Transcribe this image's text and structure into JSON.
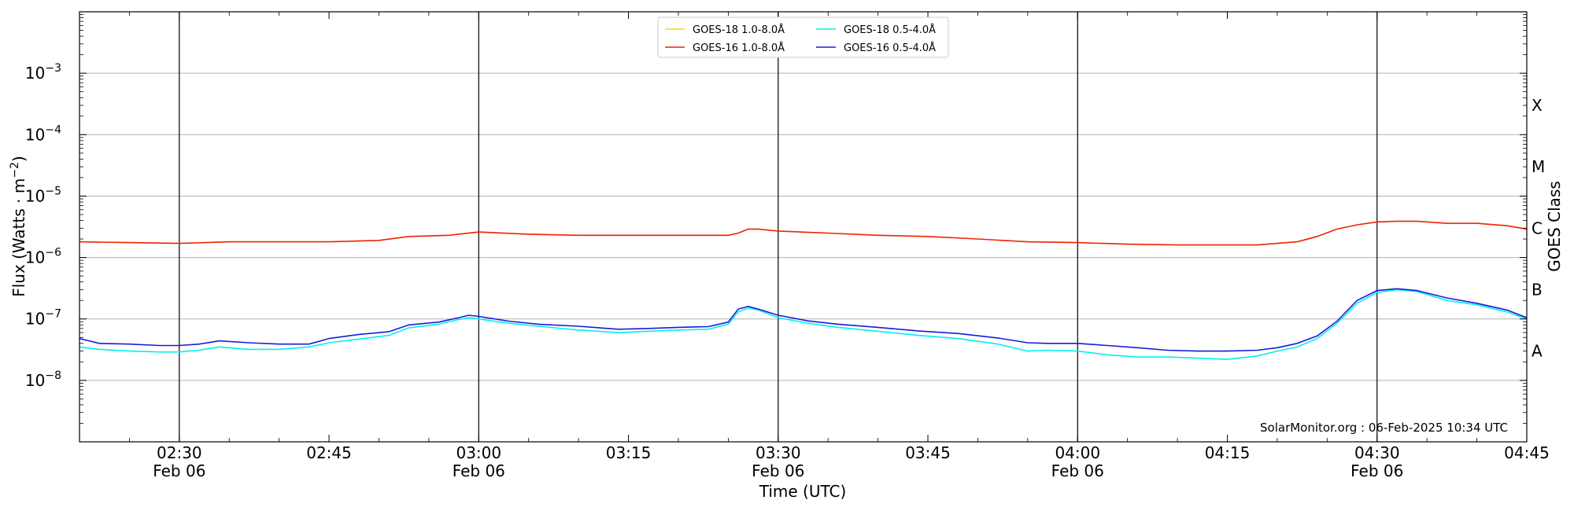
{
  "chart_data": {
    "type": "line",
    "ylabel": "Flux (Watts · m",
    "ylabel_sup": "−2",
    "ylabel_close": ")",
    "xlabel": "Time (UTC)",
    "right_label": "GOES Class",
    "credit": "SolarMonitor.org : 06-Feb-2025 10:34 UTC",
    "y_scale": "log",
    "ylim": [
      1e-09,
      0.01
    ],
    "xlim": [
      "02:20",
      "04:45"
    ],
    "grid": "horizontal at major y ticks",
    "legend_location": "top-center",
    "yticks": [
      {
        "value": 1e-08,
        "base": "10",
        "exp": "−8"
      },
      {
        "value": 1e-07,
        "base": "10",
        "exp": "−7"
      },
      {
        "value": 1e-06,
        "base": "10",
        "exp": "−6"
      },
      {
        "value": 1e-05,
        "base": "10",
        "exp": "−5"
      },
      {
        "value": 0.0001,
        "base": "10",
        "exp": "−4"
      },
      {
        "value": 0.001,
        "base": "10",
        "exp": "−3"
      }
    ],
    "xticks": [
      {
        "time": "02:30",
        "date": "Feb 06"
      },
      {
        "time": "02:45",
        "date": ""
      },
      {
        "time": "03:00",
        "date": "Feb 06"
      },
      {
        "time": "03:15",
        "date": ""
      },
      {
        "time": "03:30",
        "date": "Feb 06"
      },
      {
        "time": "03:45",
        "date": ""
      },
      {
        "time": "04:00",
        "date": "Feb 06"
      },
      {
        "time": "04:15",
        "date": ""
      },
      {
        "time": "04:30",
        "date": "Feb 06"
      },
      {
        "time": "04:45",
        "date": ""
      }
    ],
    "vlines": [
      "02:30",
      "03:00",
      "03:30",
      "04:00",
      "04:30"
    ],
    "goes_classes": [
      {
        "label": "A",
        "flux": 3e-08
      },
      {
        "label": "B",
        "flux": 3e-07
      },
      {
        "label": "C",
        "flux": 3e-06
      },
      {
        "label": "M",
        "flux": 3e-05
      },
      {
        "label": "X",
        "flux": 0.0003
      }
    ],
    "series": [
      {
        "name": "GOES-18 1.0-8.0Å",
        "color": "#ffd700",
        "x": [],
        "y": []
      },
      {
        "name": "GOES-16 1.0-8.0Å",
        "color": "#ee2200",
        "x": [
          "02:20",
          "02:25",
          "02:30",
          "02:35",
          "02:40",
          "02:45",
          "02:50",
          "02:53",
          "02:57",
          "03:00",
          "03:05",
          "03:10",
          "03:15",
          "03:20",
          "03:25",
          "03:26",
          "03:27",
          "03:28",
          "03:30",
          "03:35",
          "03:40",
          "03:45",
          "03:50",
          "03:55",
          "04:00",
          "04:05",
          "04:10",
          "04:15",
          "04:18",
          "04:20",
          "04:22",
          "04:24",
          "04:26",
          "04:28",
          "04:30",
          "04:32",
          "04:34",
          "04:37",
          "04:40",
          "04:43",
          "04:45"
        ],
        "y": [
          1.8e-06,
          1.75e-06,
          1.7e-06,
          1.8e-06,
          1.8e-06,
          1.8e-06,
          1.9e-06,
          2.2e-06,
          2.3e-06,
          2.6e-06,
          2.4e-06,
          2.3e-06,
          2.3e-06,
          2.3e-06,
          2.3e-06,
          2.5e-06,
          2.9e-06,
          2.9e-06,
          2.7e-06,
          2.5e-06,
          2.3e-06,
          2.2e-06,
          2e-06,
          1.8e-06,
          1.75e-06,
          1.65e-06,
          1.6e-06,
          1.6e-06,
          1.6e-06,
          1.7e-06,
          1.8e-06,
          2.2e-06,
          2.9e-06,
          3.4e-06,
          3.8e-06,
          3.9e-06,
          3.9e-06,
          3.6e-06,
          3.6e-06,
          3.3e-06,
          2.9e-06
        ]
      },
      {
        "name": "GOES-18 0.5-4.0Å",
        "color": "#00f0f0",
        "x": [
          "02:20",
          "02:22",
          "02:25",
          "02:28",
          "02:30",
          "02:32",
          "02:34",
          "02:37",
          "02:40",
          "02:43",
          "02:45",
          "02:48",
          "02:51",
          "02:53",
          "02:56",
          "02:58",
          "02:59",
          "03:00",
          "03:03",
          "03:06",
          "03:10",
          "03:14",
          "03:17",
          "03:20",
          "03:23",
          "03:25",
          "03:26",
          "03:27",
          "03:28",
          "03:30",
          "03:33",
          "03:36",
          "03:40",
          "03:44",
          "03:48",
          "03:52",
          "03:55",
          "03:57",
          "04:00",
          "04:03",
          "04:06",
          "04:09",
          "04:12",
          "04:15",
          "04:18",
          "04:20",
          "04:22",
          "04:24",
          "04:26",
          "04:28",
          "04:30",
          "04:32",
          "04:34",
          "04:37",
          "04:40",
          "04:43",
          "04:45"
        ],
        "y": [
          3.5e-08,
          3.2e-08,
          3e-08,
          2.9e-08,
          2.9e-08,
          3.1e-08,
          3.5e-08,
          3.2e-08,
          3.2e-08,
          3.5e-08,
          4.1e-08,
          4.7e-08,
          5.4e-08,
          7.2e-08,
          8.2e-08,
          9.8e-08,
          1.05e-07,
          1e-07,
          8.5e-08,
          7.6e-08,
          6.6e-08,
          6e-08,
          6.3e-08,
          6.6e-08,
          6.8e-08,
          8.2e-08,
          1.3e-07,
          1.5e-07,
          1.4e-07,
          1.05e-07,
          8.5e-08,
          7.3e-08,
          6.3e-08,
          5.4e-08,
          4.8e-08,
          3.9e-08,
          3e-08,
          3.1e-08,
          3e-08,
          2.6e-08,
          2.4e-08,
          2.4e-08,
          2.3e-08,
          2.2e-08,
          2.5e-08,
          3e-08,
          3.5e-08,
          4.8e-08,
          8.5e-08,
          1.8e-07,
          2.7e-07,
          3e-07,
          2.8e-07,
          2e-07,
          1.7e-07,
          1.3e-07,
          1e-07
        ]
      },
      {
        "name": "GOES-16 0.5-4.0Å",
        "color": "#1a1adb",
        "x": [
          "02:20",
          "02:22",
          "02:25",
          "02:28",
          "02:30",
          "02:32",
          "02:34",
          "02:37",
          "02:40",
          "02:43",
          "02:45",
          "02:48",
          "02:51",
          "02:53",
          "02:56",
          "02:58",
          "02:59",
          "03:00",
          "03:03",
          "03:06",
          "03:10",
          "03:14",
          "03:17",
          "03:20",
          "03:23",
          "03:25",
          "03:26",
          "03:27",
          "03:28",
          "03:30",
          "03:33",
          "03:36",
          "03:40",
          "03:44",
          "03:48",
          "03:52",
          "03:55",
          "03:57",
          "04:00",
          "04:03",
          "04:06",
          "04:09",
          "04:12",
          "04:15",
          "04:18",
          "04:20",
          "04:22",
          "04:24",
          "04:26",
          "04:28",
          "04:30",
          "04:32",
          "04:34",
          "04:37",
          "04:40",
          "04:43",
          "04:45"
        ],
        "y": [
          4.8e-08,
          4e-08,
          3.9e-08,
          3.7e-08,
          3.7e-08,
          3.9e-08,
          4.4e-08,
          4.1e-08,
          3.9e-08,
          3.9e-08,
          4.8e-08,
          5.6e-08,
          6.2e-08,
          8e-08,
          8.9e-08,
          1.05e-07,
          1.15e-07,
          1.1e-07,
          9.2e-08,
          8.2e-08,
          7.6e-08,
          6.8e-08,
          7e-08,
          7.3e-08,
          7.5e-08,
          8.9e-08,
          1.45e-07,
          1.6e-07,
          1.45e-07,
          1.15e-07,
          9.3e-08,
          8.2e-08,
          7.3e-08,
          6.4e-08,
          5.8e-08,
          4.9e-08,
          4.1e-08,
          4e-08,
          4e-08,
          3.7e-08,
          3.4e-08,
          3.1e-08,
          3e-08,
          3e-08,
          3.1e-08,
          3.4e-08,
          4e-08,
          5.3e-08,
          9.2e-08,
          2e-07,
          2.9e-07,
          3.1e-07,
          2.9e-07,
          2.2e-07,
          1.8e-07,
          1.4e-07,
          1.05e-07
        ]
      }
    ]
  }
}
